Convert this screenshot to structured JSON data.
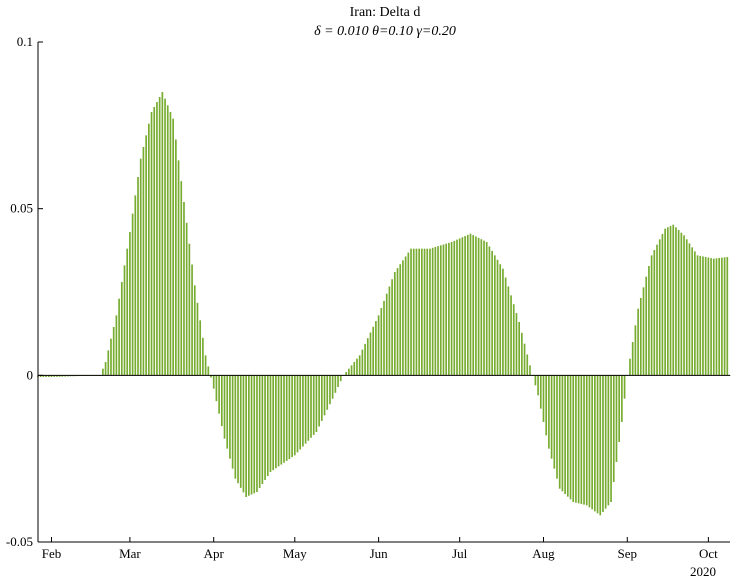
{
  "chart_data": {
    "type": "bar",
    "title": "Iran: Delta d",
    "subtitle": "δ = 0.010  θ=0.10  γ=0.20",
    "xlabel": "",
    "ylabel": "",
    "year_label": "2020",
    "ylim": [
      -0.05,
      0.1
    ],
    "yticks": [
      {
        "value": -0.05,
        "label": "-0.05"
      },
      {
        "value": 0,
        "label": "0"
      },
      {
        "value": 0.05,
        "label": "0.05"
      },
      {
        "value": 0.1,
        "label": "0.1"
      }
    ],
    "xlim": [
      "2020-01-27",
      "2020-10-09"
    ],
    "xticks": [
      {
        "date": "2020-02-01",
        "label": "Feb"
      },
      {
        "date": "2020-03-01",
        "label": "Mar"
      },
      {
        "date": "2020-04-01",
        "label": "Apr"
      },
      {
        "date": "2020-05-01",
        "label": "May"
      },
      {
        "date": "2020-06-01",
        "label": "Jun"
      },
      {
        "date": "2020-07-01",
        "label": "Jul"
      },
      {
        "date": "2020-08-01",
        "label": "Aug"
      },
      {
        "date": "2020-09-01",
        "label": "Sep"
      },
      {
        "date": "2020-10-01",
        "label": "Oct"
      }
    ],
    "bar_color": "#77AC30",
    "grid": false,
    "series": [
      {
        "points": [
          {
            "date": "2020-01-27",
            "value": -0.0005
          },
          {
            "date": "2020-02-01",
            "value": -0.0005
          },
          {
            "date": "2020-02-19",
            "value": 0.0
          },
          {
            "date": "2020-02-21",
            "value": 0.004
          },
          {
            "date": "2020-02-25",
            "value": 0.018
          },
          {
            "date": "2020-03-01",
            "value": 0.043
          },
          {
            "date": "2020-03-05",
            "value": 0.065
          },
          {
            "date": "2020-03-09",
            "value": 0.079
          },
          {
            "date": "2020-03-13",
            "value": 0.085
          },
          {
            "date": "2020-03-17",
            "value": 0.077
          },
          {
            "date": "2020-03-21",
            "value": 0.052
          },
          {
            "date": "2020-03-25",
            "value": 0.027
          },
          {
            "date": "2020-03-29",
            "value": 0.006
          },
          {
            "date": "2020-04-01",
            "value": -0.004
          },
          {
            "date": "2020-04-05",
            "value": -0.019
          },
          {
            "date": "2020-04-09",
            "value": -0.031
          },
          {
            "date": "2020-04-13",
            "value": -0.0365
          },
          {
            "date": "2020-04-17",
            "value": -0.035
          },
          {
            "date": "2020-04-22",
            "value": -0.029
          },
          {
            "date": "2020-05-01",
            "value": -0.024
          },
          {
            "date": "2020-05-09",
            "value": -0.017
          },
          {
            "date": "2020-05-15",
            "value": -0.007
          },
          {
            "date": "2020-05-19",
            "value": 0.0
          },
          {
            "date": "2020-05-25",
            "value": 0.006
          },
          {
            "date": "2020-06-01",
            "value": 0.018
          },
          {
            "date": "2020-06-07",
            "value": 0.031
          },
          {
            "date": "2020-06-13",
            "value": 0.038
          },
          {
            "date": "2020-06-20",
            "value": 0.038
          },
          {
            "date": "2020-06-28",
            "value": 0.04
          },
          {
            "date": "2020-07-05",
            "value": 0.0425
          },
          {
            "date": "2020-07-11",
            "value": 0.04
          },
          {
            "date": "2020-07-17",
            "value": 0.032
          },
          {
            "date": "2020-07-23",
            "value": 0.016
          },
          {
            "date": "2020-07-27",
            "value": 0.003
          },
          {
            "date": "2020-07-30",
            "value": -0.006
          },
          {
            "date": "2020-08-03",
            "value": -0.022
          },
          {
            "date": "2020-08-07",
            "value": -0.034
          },
          {
            "date": "2020-08-12",
            "value": -0.038
          },
          {
            "date": "2020-08-17",
            "value": -0.039
          },
          {
            "date": "2020-08-22",
            "value": -0.042
          },
          {
            "date": "2020-08-26",
            "value": -0.038
          },
          {
            "date": "2020-08-30",
            "value": -0.014
          },
          {
            "date": "2020-09-01",
            "value": 0.0
          },
          {
            "date": "2020-09-05",
            "value": 0.02
          },
          {
            "date": "2020-09-10",
            "value": 0.036
          },
          {
            "date": "2020-09-15",
            "value": 0.044
          },
          {
            "date": "2020-09-18",
            "value": 0.0452
          },
          {
            "date": "2020-09-22",
            "value": 0.042
          },
          {
            "date": "2020-09-27",
            "value": 0.036
          },
          {
            "date": "2020-10-03",
            "value": 0.035
          },
          {
            "date": "2020-10-08",
            "value": 0.0355
          }
        ]
      }
    ]
  }
}
